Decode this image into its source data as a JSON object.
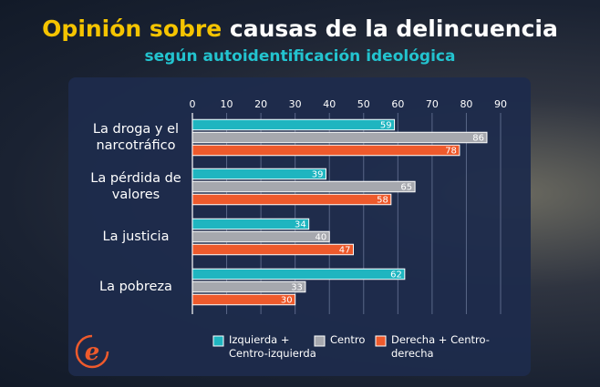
{
  "chart_data": {
    "type": "bar",
    "orientation": "horizontal",
    "title_parts": [
      "Opinión sobre",
      "causas de la delincuencia"
    ],
    "subtitle": "según autoidentificación ideológica",
    "categories": [
      "La droga y el narcotráfico",
      "La pérdida de valores",
      "La justicia",
      "La pobreza"
    ],
    "series": [
      {
        "name": "Izquierda + Centro-izquierda",
        "color": "#1fb5c0",
        "values": [
          59,
          39,
          34,
          62
        ]
      },
      {
        "name": "Centro",
        "color": "#a6a8ae",
        "values": [
          86,
          65,
          40,
          33
        ]
      },
      {
        "name": "Derecha + Centro-derecha",
        "color": "#ee5a2c",
        "values": [
          78,
          58,
          47,
          30
        ]
      }
    ],
    "xlim": [
      0,
      90
    ],
    "xticks": [
      0,
      10,
      20,
      30,
      40,
      50,
      60,
      70,
      80,
      90
    ],
    "grid": true,
    "legend": "bottom"
  }
}
